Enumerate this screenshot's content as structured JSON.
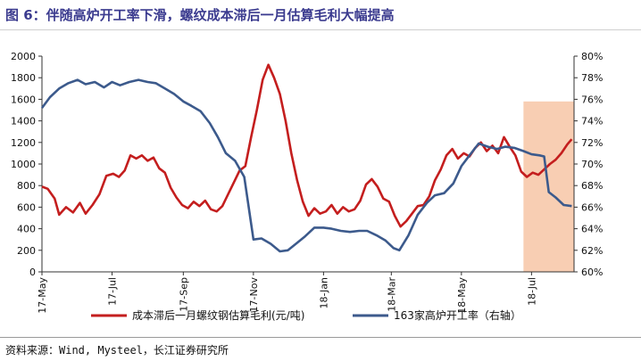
{
  "title": "图 6：伴随高炉开工率下滑，螺纹成本滞后一月估算毛利大幅提高",
  "source": "资料来源：Wind, Mysteel，长江证券研究所",
  "colors": {
    "series1": "#c41e1e",
    "series2": "#3c5a8c",
    "shade": "#f7c6a6",
    "title": "#3b3b8f"
  },
  "chart_data": {
    "type": "line",
    "y_left": {
      "lim": [
        0,
        2000
      ],
      "ticks": [
        "0",
        "200",
        "400",
        "600",
        "800",
        "1000",
        "1200",
        "1400",
        "1600",
        "1800",
        "2000"
      ]
    },
    "y_right": {
      "lim": [
        60,
        80
      ],
      "ticks": [
        "60%",
        "62%",
        "64%",
        "66%",
        "68%",
        "70%",
        "72%",
        "74%",
        "76%",
        "78%",
        "80%"
      ]
    },
    "x_ticks": [
      "17-May",
      "17-Jul",
      "17-Sep",
      "17-Nov",
      "18-Jan",
      "18-Mar",
      "18-May",
      "18-Jul"
    ],
    "shaded_region": {
      "from": "18-Jun",
      "to": "18-Aug"
    },
    "legend_position": "bottom",
    "series": [
      {
        "name": "成本滞后一月螺纹钢估算毛利(元/吨)",
        "axis": "left",
        "points": [
          [
            "2017-05-01",
            790
          ],
          [
            "2017-05-06",
            770
          ],
          [
            "2017-05-12",
            680
          ],
          [
            "2017-05-16",
            530
          ],
          [
            "2017-05-22",
            600
          ],
          [
            "2017-05-28",
            550
          ],
          [
            "2017-06-03",
            640
          ],
          [
            "2017-06-08",
            540
          ],
          [
            "2017-06-14",
            620
          ],
          [
            "2017-06-20",
            720
          ],
          [
            "2017-06-26",
            890
          ],
          [
            "2017-07-02",
            910
          ],
          [
            "2017-07-07",
            880
          ],
          [
            "2017-07-12",
            940
          ],
          [
            "2017-07-17",
            1080
          ],
          [
            "2017-07-22",
            1050
          ],
          [
            "2017-07-27",
            1080
          ],
          [
            "2017-08-01",
            1030
          ],
          [
            "2017-08-06",
            1060
          ],
          [
            "2017-08-11",
            960
          ],
          [
            "2017-08-16",
            920
          ],
          [
            "2017-08-21",
            780
          ],
          [
            "2017-08-26",
            690
          ],
          [
            "2017-08-31",
            620
          ],
          [
            "2017-09-05",
            590
          ],
          [
            "2017-09-10",
            650
          ],
          [
            "2017-09-15",
            610
          ],
          [
            "2017-09-20",
            660
          ],
          [
            "2017-09-25",
            580
          ],
          [
            "2017-09-30",
            560
          ],
          [
            "2017-10-05",
            610
          ],
          [
            "2017-10-10",
            720
          ],
          [
            "2017-10-15",
            830
          ],
          [
            "2017-10-20",
            940
          ],
          [
            "2017-10-25",
            980
          ],
          [
            "2017-10-30",
            1250
          ],
          [
            "2017-11-04",
            1500
          ],
          [
            "2017-11-09",
            1780
          ],
          [
            "2017-11-14",
            1920
          ],
          [
            "2017-11-19",
            1800
          ],
          [
            "2017-11-24",
            1650
          ],
          [
            "2017-11-29",
            1400
          ],
          [
            "2017-12-04",
            1100
          ],
          [
            "2017-12-09",
            850
          ],
          [
            "2017-12-14",
            650
          ],
          [
            "2017-12-19",
            520
          ],
          [
            "2017-12-24",
            590
          ],
          [
            "2017-12-29",
            540
          ],
          [
            "2018-01-03",
            560
          ],
          [
            "2018-01-08",
            620
          ],
          [
            "2018-01-13",
            540
          ],
          [
            "2018-01-18",
            600
          ],
          [
            "2018-01-23",
            560
          ],
          [
            "2018-01-28",
            580
          ],
          [
            "2018-02-02",
            660
          ],
          [
            "2018-02-07",
            810
          ],
          [
            "2018-02-12",
            860
          ],
          [
            "2018-02-17",
            790
          ],
          [
            "2018-02-22",
            680
          ],
          [
            "2018-02-27",
            650
          ],
          [
            "2018-03-04",
            520
          ],
          [
            "2018-03-09",
            420
          ],
          [
            "2018-03-14",
            470
          ],
          [
            "2018-03-19",
            540
          ],
          [
            "2018-03-24",
            610
          ],
          [
            "2018-03-29",
            620
          ],
          [
            "2018-04-03",
            700
          ],
          [
            "2018-04-08",
            850
          ],
          [
            "2018-04-13",
            950
          ],
          [
            "2018-04-18",
            1080
          ],
          [
            "2018-04-23",
            1140
          ],
          [
            "2018-04-28",
            1050
          ],
          [
            "2018-05-03",
            1100
          ],
          [
            "2018-05-08",
            1070
          ],
          [
            "2018-05-13",
            1150
          ],
          [
            "2018-05-18",
            1200
          ],
          [
            "2018-05-23",
            1120
          ],
          [
            "2018-05-28",
            1170
          ],
          [
            "2018-06-02",
            1100
          ],
          [
            "2018-06-07",
            1250
          ],
          [
            "2018-06-12",
            1160
          ],
          [
            "2018-06-17",
            1080
          ],
          [
            "2018-06-22",
            930
          ],
          [
            "2018-06-27",
            880
          ],
          [
            "2018-07-02",
            920
          ],
          [
            "2018-07-07",
            900
          ],
          [
            "2018-07-12",
            950
          ],
          [
            "2018-07-17",
            1000
          ],
          [
            "2018-07-22",
            1040
          ],
          [
            "2018-07-27",
            1100
          ],
          [
            "2018-08-01",
            1180
          ],
          [
            "2018-08-05",
            1230
          ]
        ]
      },
      {
        "name": "163家高炉开工率（右轴）",
        "axis": "right",
        "points": [
          [
            "2017-05-01",
            75.2
          ],
          [
            "2017-05-08",
            76.2
          ],
          [
            "2017-05-16",
            77.0
          ],
          [
            "2017-05-24",
            77.5
          ],
          [
            "2017-06-01",
            77.8
          ],
          [
            "2017-06-08",
            77.4
          ],
          [
            "2017-06-16",
            77.6
          ],
          [
            "2017-06-24",
            77.1
          ],
          [
            "2017-07-01",
            77.6
          ],
          [
            "2017-07-08",
            77.3
          ],
          [
            "2017-07-16",
            77.6
          ],
          [
            "2017-07-24",
            77.8
          ],
          [
            "2017-08-01",
            77.6
          ],
          [
            "2017-08-08",
            77.5
          ],
          [
            "2017-08-16",
            77.0
          ],
          [
            "2017-08-24",
            76.5
          ],
          [
            "2017-09-01",
            75.8
          ],
          [
            "2017-09-08",
            75.4
          ],
          [
            "2017-09-16",
            74.9
          ],
          [
            "2017-09-24",
            73.8
          ],
          [
            "2017-10-01",
            72.5
          ],
          [
            "2017-10-08",
            71.0
          ],
          [
            "2017-10-16",
            70.3
          ],
          [
            "2017-10-24",
            68.8
          ],
          [
            "2017-11-01",
            63.0
          ],
          [
            "2017-11-08",
            63.1
          ],
          [
            "2017-11-16",
            62.6
          ],
          [
            "2017-11-24",
            61.9
          ],
          [
            "2017-12-01",
            62.0
          ],
          [
            "2017-12-08",
            62.6
          ],
          [
            "2017-12-16",
            63.3
          ],
          [
            "2017-12-24",
            64.1
          ],
          [
            "2018-01-01",
            64.1
          ],
          [
            "2018-01-08",
            64.0
          ],
          [
            "2018-01-16",
            63.8
          ],
          [
            "2018-01-24",
            63.7
          ],
          [
            "2018-02-01",
            63.8
          ],
          [
            "2018-02-08",
            63.8
          ],
          [
            "2018-02-16",
            63.4
          ],
          [
            "2018-02-24",
            62.9
          ],
          [
            "2018-03-03",
            62.2
          ],
          [
            "2018-03-08",
            62.0
          ],
          [
            "2018-03-16",
            63.4
          ],
          [
            "2018-03-24",
            65.3
          ],
          [
            "2018-04-01",
            66.4
          ],
          [
            "2018-04-08",
            67.1
          ],
          [
            "2018-04-16",
            67.3
          ],
          [
            "2018-04-24",
            68.2
          ],
          [
            "2018-05-01",
            69.8
          ],
          [
            "2018-05-08",
            70.8
          ],
          [
            "2018-05-16",
            71.9
          ],
          [
            "2018-05-24",
            71.6
          ],
          [
            "2018-06-01",
            71.4
          ],
          [
            "2018-06-08",
            71.6
          ],
          [
            "2018-06-16",
            71.5
          ],
          [
            "2018-06-24",
            71.2
          ],
          [
            "2018-07-01",
            70.9
          ],
          [
            "2018-07-08",
            70.8
          ],
          [
            "2018-07-12",
            70.7
          ],
          [
            "2018-07-16",
            67.4
          ],
          [
            "2018-07-22",
            66.9
          ],
          [
            "2018-07-29",
            66.2
          ],
          [
            "2018-08-05",
            66.1
          ]
        ]
      }
    ]
  }
}
